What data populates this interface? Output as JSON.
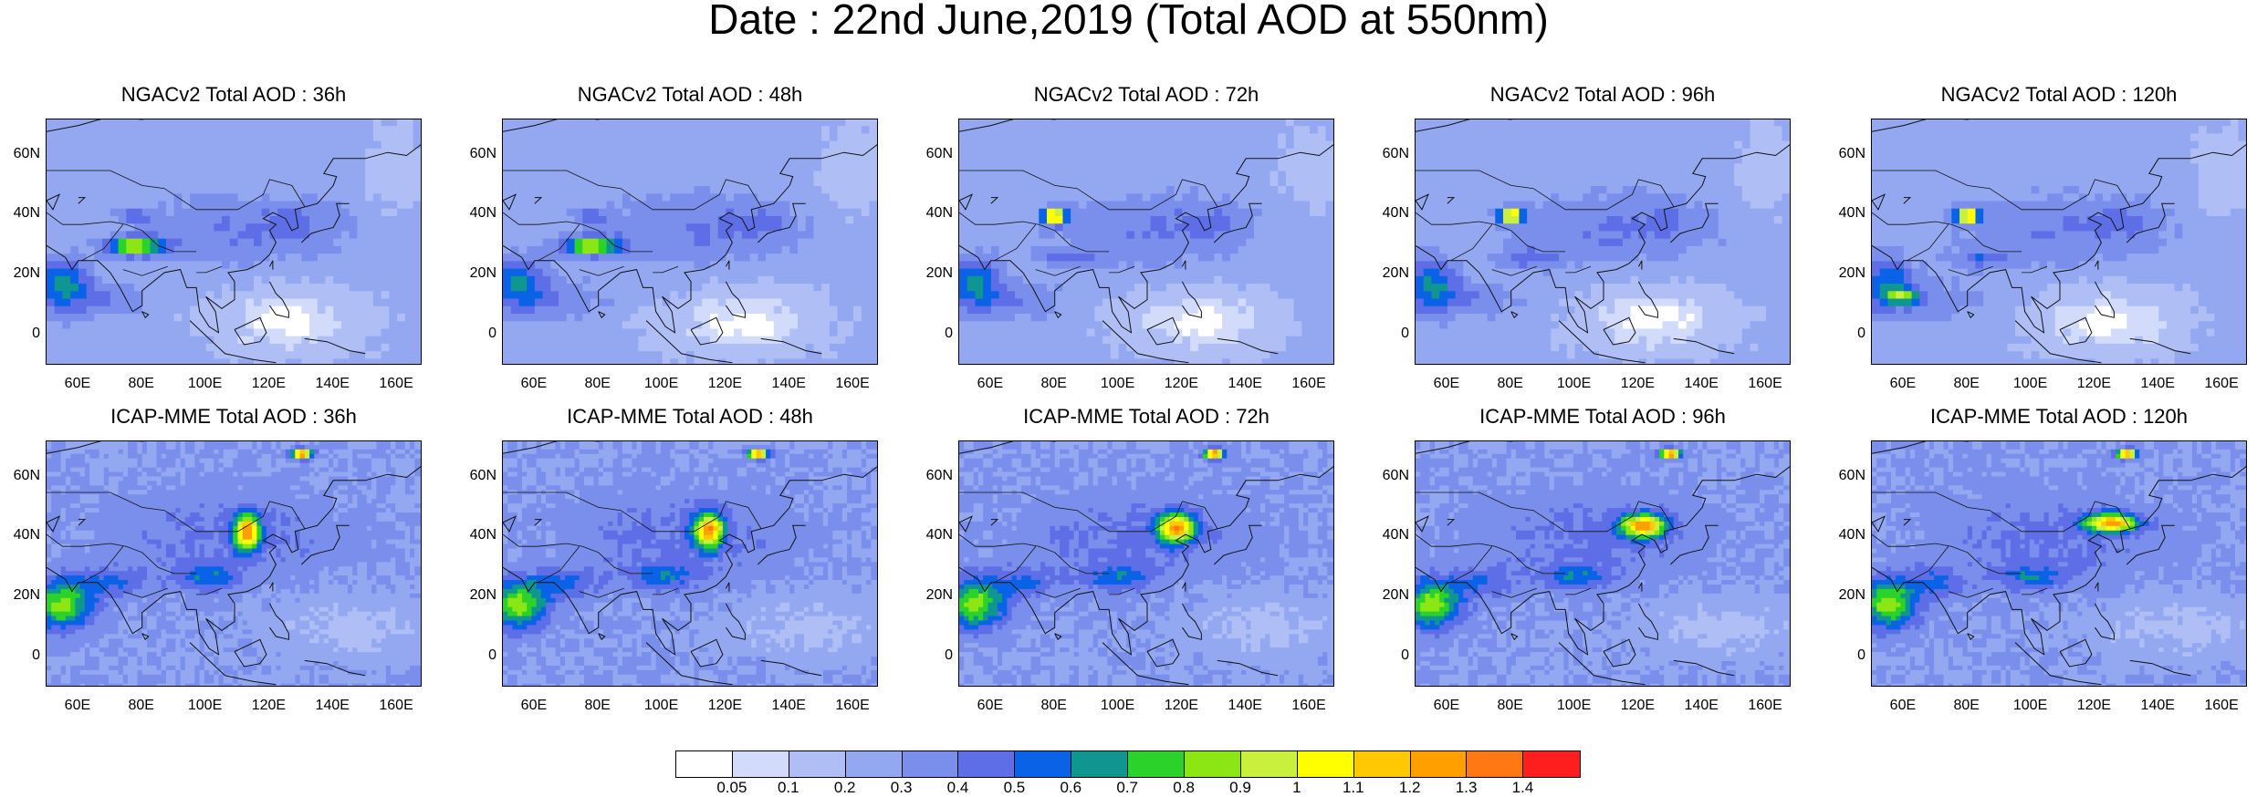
{
  "title": "Date : 22nd June,2019 (Total AOD at 550nm)",
  "lon_ticks": [
    "60E",
    "80E",
    "100E",
    "120E",
    "140E",
    "160E"
  ],
  "lat_ticks": [
    "60N",
    "40N",
    "20N",
    "0"
  ],
  "panels": [
    {
      "title": "NGACv2 Total AOD : 36h",
      "model": "NGACv2",
      "lead": 36
    },
    {
      "title": "NGACv2 Total AOD : 48h",
      "model": "NGACv2",
      "lead": 48
    },
    {
      "title": "NGACv2 Total AOD : 72h",
      "model": "NGACv2",
      "lead": 72
    },
    {
      "title": "NGACv2 Total AOD : 96h",
      "model": "NGACv2",
      "lead": 96
    },
    {
      "title": "NGACv2 Total AOD : 120h",
      "model": "NGACv2",
      "lead": 120
    },
    {
      "title": "ICAP-MME Total AOD : 36h",
      "model": "ICAP",
      "lead": 36
    },
    {
      "title": "ICAP-MME Total AOD : 48h",
      "model": "ICAP",
      "lead": 48
    },
    {
      "title": "ICAP-MME Total AOD : 72h",
      "model": "ICAP",
      "lead": 72
    },
    {
      "title": "ICAP-MME Total AOD : 96h",
      "model": "ICAP",
      "lead": 96
    },
    {
      "title": "ICAP-MME Total AOD : 120h",
      "model": "ICAP",
      "lead": 120
    }
  ],
  "colorbar": {
    "labels": [
      "0.05",
      "0.1",
      "0.2",
      "0.3",
      "0.4",
      "0.5",
      "0.6",
      "0.7",
      "0.8",
      "0.9",
      "1",
      "1.1",
      "1.2",
      "1.3",
      "1.4"
    ],
    "colors": [
      "#ffffff",
      "#d2dcfa",
      "#afbef5",
      "#94a8f2",
      "#7a8fec",
      "#5e6ee6",
      "#0a62e6",
      "#0f9690",
      "#2ad22a",
      "#8ce614",
      "#c8f03c",
      "#ffff00",
      "#ffc800",
      "#ffa000",
      "#ff7814",
      "#ff1e1e"
    ]
  }
}
